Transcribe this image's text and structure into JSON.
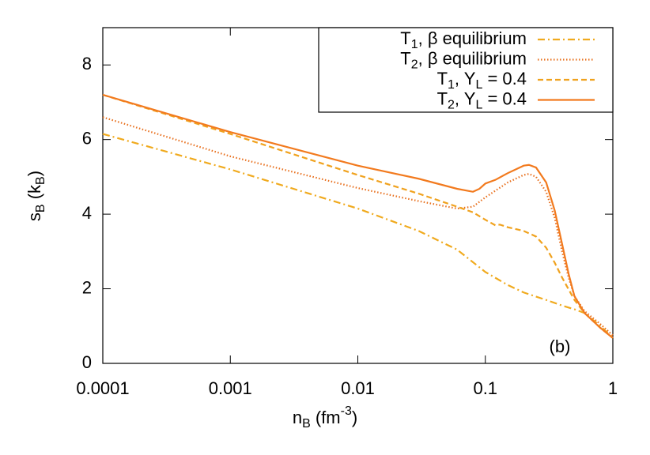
{
  "chart_data": {
    "type": "line",
    "xlabel": [
      "n",
      "B",
      " (fm",
      "-3",
      ")"
    ],
    "ylabel": [
      "s",
      "B",
      " (k",
      "B",
      ")"
    ],
    "annotation": "(b)",
    "xscale": "log",
    "xlim": [
      0.0001,
      1
    ],
    "xticks": [
      0.0001,
      0.001,
      0.01,
      0.1,
      1
    ],
    "ylim": [
      0,
      9
    ],
    "yticks": [
      0,
      2,
      4,
      6,
      8
    ],
    "grid": false,
    "legend": "upper right",
    "series": [
      {
        "name": [
          "T",
          "1",
          ", β equilibrium"
        ],
        "color": "#f0aa1e",
        "dash": "dashdot",
        "x": [
          0.0001,
          0.001,
          0.01,
          0.03,
          0.06,
          0.1,
          0.15,
          0.2,
          0.3,
          0.4,
          0.5,
          0.6,
          0.8,
          1
        ],
        "values": [
          6.15,
          5.2,
          4.15,
          3.55,
          3.05,
          2.45,
          2.1,
          1.9,
          1.7,
          1.55,
          1.45,
          1.35,
          1.0,
          0.68
        ]
      },
      {
        "name": [
          "T",
          "2",
          ", β equilibrium"
        ],
        "color": "#e8701e",
        "dash": "dotted",
        "x": [
          0.0001,
          0.001,
          0.01,
          0.03,
          0.06,
          0.08,
          0.1,
          0.15,
          0.2,
          0.22,
          0.25,
          0.3,
          0.35,
          0.4,
          0.45,
          0.5,
          0.6,
          0.8,
          1
        ],
        "values": [
          6.6,
          5.55,
          4.7,
          4.35,
          4.15,
          4.2,
          4.45,
          4.85,
          5.05,
          5.08,
          5.0,
          4.6,
          3.9,
          3.0,
          2.3,
          1.8,
          1.4,
          1.05,
          0.75
        ]
      },
      {
        "name": [
          "T",
          "1",
          ", Y",
          "L",
          " = 0.4"
        ],
        "color": "#f0a21e",
        "dash": "dashed",
        "x": [
          0.0001,
          0.001,
          0.01,
          0.03,
          0.06,
          0.08,
          0.1,
          0.12,
          0.13,
          0.15,
          0.2,
          0.25,
          0.3,
          0.35,
          0.4,
          0.5,
          0.6,
          0.8,
          1
        ],
        "values": [
          7.2,
          6.15,
          5.05,
          4.55,
          4.2,
          4.05,
          3.85,
          3.7,
          3.72,
          3.65,
          3.55,
          3.4,
          3.1,
          2.7,
          2.3,
          1.7,
          1.35,
          0.95,
          0.68
        ]
      },
      {
        "name": [
          "T",
          "2",
          ", Y",
          "L",
          " = 0.4"
        ],
        "color": "#f27a1e",
        "dash": "solid",
        "x": [
          0.0001,
          0.001,
          0.01,
          0.03,
          0.06,
          0.08,
          0.09,
          0.1,
          0.12,
          0.15,
          0.2,
          0.22,
          0.25,
          0.3,
          0.35,
          0.4,
          0.45,
          0.5,
          0.6,
          0.8,
          1
        ],
        "values": [
          7.2,
          6.2,
          5.3,
          4.95,
          4.68,
          4.6,
          4.68,
          4.82,
          4.92,
          5.1,
          5.3,
          5.32,
          5.25,
          4.85,
          4.1,
          3.2,
          2.4,
          1.8,
          1.35,
          0.95,
          0.68
        ]
      }
    ]
  }
}
